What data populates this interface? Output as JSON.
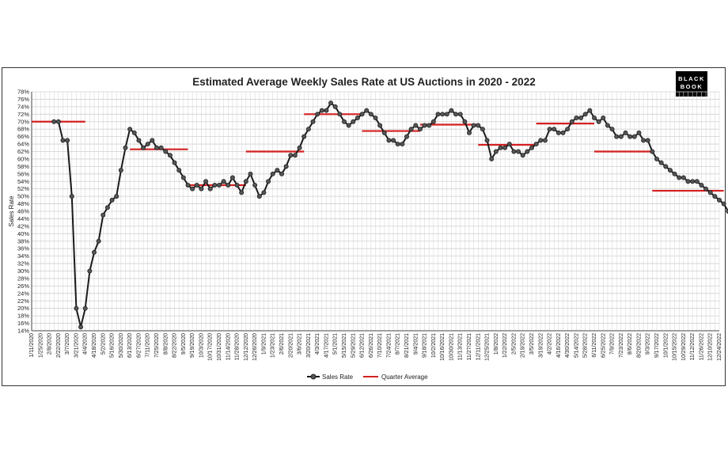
{
  "logo": {
    "line1": "BLACK",
    "line2": "BOOK"
  },
  "chart_data": {
    "type": "line",
    "title": "Estimated Average Weekly Sales Rate at US Auctions in 2020 - 2022",
    "ylabel": "Sales Rate",
    "xlabel": "",
    "ylim": [
      14,
      78
    ],
    "ytick_step": 2,
    "grid": true,
    "legend_position": "bottom",
    "x_tick_labels": [
      "1/11/2020",
      "1/25/2020",
      "2/8/2020",
      "2/22/2020",
      "3/7/2020",
      "3/21/2020",
      "4/4/2020",
      "4/18/2020",
      "5/2/2020",
      "5/16/2020",
      "5/30/2020",
      "6/13/2020",
      "6/27/2020",
      "7/11/2020",
      "7/25/2020",
      "8/8/2020",
      "8/22/2020",
      "9/5/2020",
      "9/19/2020",
      "10/3/2020",
      "10/17/2020",
      "10/31/2020",
      "11/14/2020",
      "11/28/2020",
      "12/12/2020",
      "12/26/2020",
      "1/9/2021",
      "1/23/2021",
      "2/6/2021",
      "2/20/2021",
      "3/6/2021",
      "3/20/2021",
      "4/3/2021",
      "4/17/2021",
      "5/1/2021",
      "5/15/2021",
      "5/29/2021",
      "6/12/2021",
      "6/26/2021",
      "7/10/2021",
      "7/24/2021",
      "8/7/2021",
      "8/21/2021",
      "9/4/2021",
      "9/18/2021",
      "10/2/2021",
      "10/16/2021",
      "10/30/2021",
      "11/13/2021",
      "11/27/2021",
      "12/11/2021",
      "12/25/2021",
      "1/8/2022",
      "1/22/2022",
      "2/5/2022",
      "2/19/2022",
      "3/5/2022",
      "3/19/2022",
      "4/2/2022",
      "4/16/2022",
      "4/30/2022",
      "5/14/2022",
      "5/28/2022",
      "6/11/2022",
      "6/25/2022",
      "7/9/2022",
      "7/23/2022",
      "8/6/2022",
      "8/20/2022",
      "9/3/2022",
      "9/17/2022",
      "10/1/2022",
      "10/15/2022",
      "10/29/2022",
      "11/12/2022",
      "11/26/2022",
      "12/10/2022",
      "12/24/2022"
    ],
    "series": [
      {
        "name": "Sales Rate",
        "color": "#1a1a1a",
        "marker_color": "#555555",
        "week_index_start": 5,
        "values": [
          70,
          70,
          65,
          65,
          50,
          20,
          15,
          20,
          30,
          35,
          38,
          45,
          47,
          49,
          50,
          57,
          63,
          68,
          67,
          65,
          63,
          64,
          65,
          63,
          63,
          62,
          61,
          59,
          57,
          55,
          53,
          52,
          53,
          52,
          54,
          52,
          53,
          53,
          54,
          53,
          55,
          53,
          51,
          54,
          56,
          53,
          50,
          51,
          54,
          56,
          57,
          56,
          58,
          61,
          61,
          63,
          66,
          68,
          70,
          72,
          73,
          73,
          75,
          74,
          72,
          70,
          69,
          70,
          71,
          72,
          73,
          72,
          71,
          69,
          67,
          65,
          65,
          64,
          64,
          66,
          68,
          69,
          68,
          69,
          69,
          70,
          72,
          72,
          72,
          73,
          72,
          72,
          70,
          67,
          69,
          69,
          68,
          65,
          60,
          62,
          63,
          63,
          64,
          62,
          62,
          61,
          62,
          63,
          64,
          65,
          65,
          68,
          68,
          67,
          67,
          68,
          70,
          71,
          71,
          72,
          73,
          71,
          70,
          71,
          69,
          68,
          66,
          66,
          67,
          66,
          66,
          67,
          65,
          65,
          62,
          60,
          59,
          58,
          57,
          56,
          55,
          55,
          54,
          54,
          54,
          53,
          52,
          51,
          50,
          49,
          48,
          46
        ]
      },
      {
        "name": "Quarter Average",
        "color": "#d42020",
        "segments": [
          {
            "start": 0,
            "end": 12,
            "value": 70
          },
          {
            "start": 22,
            "end": 35,
            "value": 62.6
          },
          {
            "start": 35,
            "end": 48,
            "value": 53
          },
          {
            "start": 48,
            "end": 61,
            "value": 62
          },
          {
            "start": 61,
            "end": 74,
            "value": 72
          },
          {
            "start": 74,
            "end": 87,
            "value": 67.5
          },
          {
            "start": 87,
            "end": 100,
            "value": 69.2
          },
          {
            "start": 100,
            "end": 113,
            "value": 63.8
          },
          {
            "start": 113,
            "end": 126,
            "value": 69.5
          },
          {
            "start": 126,
            "end": 139,
            "value": 62
          },
          {
            "start": 139,
            "end": 155,
            "value": 51.5
          }
        ]
      }
    ]
  }
}
